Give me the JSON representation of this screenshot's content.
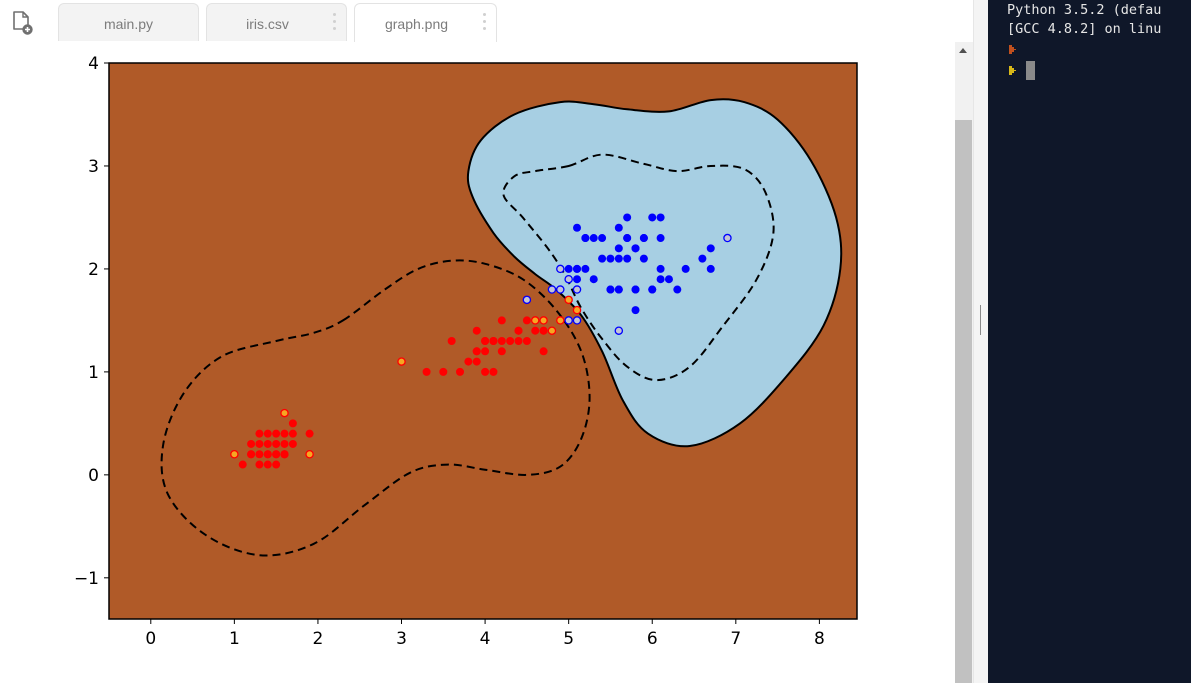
{
  "tabs": [
    {
      "label": "main.py",
      "active": false,
      "menu": false
    },
    {
      "label": "iris.csv",
      "active": false,
      "menu": true
    },
    {
      "label": "graph.png",
      "active": true,
      "menu": true
    }
  ],
  "icons": {
    "new_file": "new-file-icon",
    "tab_menu": "kebab-menu-icon",
    "scroll_up": "triangle-up-icon",
    "prompt": "chevron-right-icon"
  },
  "terminal": {
    "lines": [
      "Python 3.5.2 (defau",
      "[GCC 4.8.2] on linu"
    ],
    "prompt_colors": [
      "#c0501e",
      "#d8b818"
    ]
  },
  "chart_data": {
    "type": "scatter",
    "title": "",
    "xlabel": "",
    "ylabel": "",
    "xlim": [
      -0.5,
      8.45
    ],
    "ylim": [
      -1.4,
      4.0
    ],
    "xticks": [
      "0",
      "1",
      "2",
      "3",
      "4",
      "5",
      "6",
      "7",
      "8"
    ],
    "yticks": [
      "−1",
      "0",
      "1",
      "2",
      "3",
      "4"
    ],
    "grid": false,
    "legend": "none",
    "colors": {
      "background_region": "#b05a28",
      "positive_region": "#a7cfe3",
      "class_a": "#ff0000",
      "class_b": "#0000ff",
      "support_vector_face_a": "#f6a623",
      "support_vector_face_b": "#c4c4d6",
      "decision_boundary": "#000000"
    },
    "decision_boundary": [
      [
        5.7,
        3.55
      ],
      [
        6.2,
        3.53
      ],
      [
        6.7,
        3.64
      ],
      [
        7.1,
        3.62
      ],
      [
        7.5,
        3.45
      ],
      [
        7.9,
        3.05
      ],
      [
        8.2,
        2.5
      ],
      [
        8.25,
        2.0
      ],
      [
        8.05,
        1.45
      ],
      [
        7.6,
        0.95
      ],
      [
        7.05,
        0.5
      ],
      [
        6.45,
        0.28
      ],
      [
        5.95,
        0.4
      ],
      [
        5.65,
        0.72
      ],
      [
        5.4,
        1.2
      ],
      [
        5.15,
        1.55
      ],
      [
        4.85,
        1.8
      ],
      [
        4.6,
        1.95
      ],
      [
        4.35,
        2.12
      ],
      [
        4.1,
        2.35
      ],
      [
        3.85,
        2.7
      ],
      [
        3.8,
        2.95
      ],
      [
        3.95,
        3.25
      ],
      [
        4.35,
        3.5
      ],
      [
        4.9,
        3.62
      ],
      [
        5.3,
        3.6
      ]
    ],
    "margin_upper": [
      [
        5.0,
        3.0
      ],
      [
        5.4,
        3.11
      ],
      [
        5.9,
        3.02
      ],
      [
        6.3,
        2.95
      ],
      [
        6.7,
        3.0
      ],
      [
        7.1,
        2.97
      ],
      [
        7.35,
        2.75
      ],
      [
        7.45,
        2.35
      ],
      [
        7.25,
        1.9
      ],
      [
        6.85,
        1.45
      ],
      [
        6.45,
        1.05
      ],
      [
        6.05,
        0.92
      ],
      [
        5.7,
        1.05
      ],
      [
        5.4,
        1.32
      ],
      [
        5.15,
        1.62
      ],
      [
        4.95,
        1.95
      ],
      [
        4.75,
        2.2
      ],
      [
        4.45,
        2.5
      ],
      [
        4.22,
        2.72
      ],
      [
        4.35,
        2.9
      ],
      [
        4.6,
        2.95
      ]
    ],
    "margin_lower": [
      [
        2.3,
        1.5
      ],
      [
        2.8,
        1.8
      ],
      [
        3.2,
        2.0
      ],
      [
        3.6,
        2.08
      ],
      [
        4.0,
        2.05
      ],
      [
        4.45,
        1.9
      ],
      [
        4.85,
        1.6
      ],
      [
        5.15,
        1.2
      ],
      [
        5.25,
        0.75
      ],
      [
        5.15,
        0.35
      ],
      [
        4.9,
        0.08
      ],
      [
        4.5,
        0.0
      ],
      [
        4.0,
        0.05
      ],
      [
        3.55,
        0.1
      ],
      [
        3.1,
        0.02
      ],
      [
        2.55,
        -0.3
      ],
      [
        1.95,
        -0.67
      ],
      [
        1.3,
        -0.78
      ],
      [
        0.65,
        -0.58
      ],
      [
        0.2,
        -0.18
      ],
      [
        0.15,
        0.3
      ],
      [
        0.4,
        0.8
      ],
      [
        0.85,
        1.15
      ],
      [
        1.5,
        1.3
      ],
      [
        1.95,
        1.38
      ]
    ],
    "series": [
      {
        "values": [
          [
            1.4,
            0.2
          ],
          [
            1.3,
            0.2
          ],
          [
            1.5,
            0.2
          ],
          [
            1.7,
            0.4
          ],
          [
            1.4,
            0.3
          ],
          [
            1.5,
            0.1
          ],
          [
            1.6,
            0.2
          ],
          [
            1.1,
            0.1
          ],
          [
            1.2,
            0.2
          ],
          [
            1.3,
            0.4
          ],
          [
            1.5,
            0.4
          ],
          [
            1.7,
            0.3
          ],
          [
            1.6,
            0.4
          ],
          [
            1.2,
            0.2
          ],
          [
            1.4,
            0.1
          ],
          [
            1.6,
            0.2
          ],
          [
            1.3,
            0.3
          ],
          [
            1.5,
            0.3
          ],
          [
            1.4,
            0.4
          ],
          [
            1.7,
            0.5
          ],
          [
            1.6,
            0.3
          ],
          [
            1.4,
            0.2
          ],
          [
            1.9,
            0.4
          ],
          [
            1.2,
            0.3
          ],
          [
            1.3,
            0.1
          ],
          [
            1.5,
            0.2
          ],
          [
            1.6,
            0.2
          ],
          [
            4.7,
            1.4
          ],
          [
            4.5,
            1.5
          ],
          [
            4.0,
            1.3
          ],
          [
            4.6,
            1.5
          ],
          [
            3.3,
            1.0
          ],
          [
            3.9,
            1.4
          ],
          [
            3.5,
            1.0
          ],
          [
            4.2,
            1.5
          ],
          [
            4.0,
            1.0
          ],
          [
            4.7,
            1.4
          ],
          [
            3.6,
            1.3
          ],
          [
            4.4,
            1.4
          ],
          [
            4.1,
            1.0
          ],
          [
            3.9,
            1.1
          ],
          [
            4.8,
            1.8
          ],
          [
            4.0,
            1.3
          ],
          [
            4.4,
            1.3
          ],
          [
            4.7,
            1.2
          ],
          [
            4.3,
            1.3
          ],
          [
            4.4,
            1.4
          ],
          [
            4.1,
            1.3
          ],
          [
            3.7,
            1.0
          ],
          [
            3.9,
            1.2
          ],
          [
            4.6,
            1.4
          ],
          [
            4.2,
            1.3
          ],
          [
            4.0,
            1.2
          ],
          [
            3.8,
            1.1
          ],
          [
            4.5,
            1.3
          ],
          [
            4.2,
            1.2
          ],
          [
            4.1,
            1.3
          ],
          [
            3.9,
            1.2
          ]
        ]
      },
      {
        "values": [
          [
            6.0,
            2.5
          ],
          [
            5.1,
            1.9
          ],
          [
            5.9,
            2.1
          ],
          [
            5.6,
            1.8
          ],
          [
            5.8,
            2.2
          ],
          [
            6.6,
            2.1
          ],
          [
            5.8,
            1.8
          ],
          [
            6.1,
            2.5
          ],
          [
            5.3,
            1.9
          ],
          [
            5.5,
            2.1
          ],
          [
            5.0,
            2.0
          ],
          [
            5.1,
            2.4
          ],
          [
            5.3,
            2.3
          ],
          [
            5.5,
            1.8
          ],
          [
            6.7,
            2.2
          ],
          [
            5.7,
            2.3
          ],
          [
            6.7,
            2.0
          ],
          [
            5.7,
            2.1
          ],
          [
            6.0,
            1.8
          ],
          [
            5.4,
            2.1
          ],
          [
            5.6,
            2.4
          ],
          [
            6.1,
            2.3
          ],
          [
            5.2,
            2.3
          ],
          [
            5.6,
            1.8
          ],
          [
            6.1,
            1.9
          ],
          [
            6.4,
            2.0
          ],
          [
            5.6,
            2.2
          ],
          [
            5.5,
            1.8
          ],
          [
            5.4,
            2.3
          ],
          [
            5.6,
            2.1
          ],
          [
            5.1,
            2.0
          ],
          [
            5.9,
            2.3
          ],
          [
            5.7,
            2.5
          ],
          [
            5.2,
            2.0
          ],
          [
            6.3,
            1.8
          ],
          [
            5.8,
            1.6
          ],
          [
            6.1,
            2.0
          ],
          [
            5.0,
            1.9
          ],
          [
            5.2,
            2.3
          ],
          [
            5.1,
            2.0
          ],
          [
            5.8,
            1.8
          ],
          [
            6.0,
            1.8
          ],
          [
            5.8,
            2.2
          ],
          [
            5.9,
            2.3
          ],
          [
            5.7,
            2.3
          ],
          [
            6.2,
            1.9
          ]
        ]
      }
    ],
    "support_vectors_a": [
      [
        1.0,
        0.2
      ],
      [
        1.6,
        0.6
      ],
      [
        1.9,
        0.2
      ],
      [
        3.0,
        1.1
      ],
      [
        4.5,
        1.7
      ],
      [
        4.6,
        1.5
      ],
      [
        4.7,
        1.5
      ],
      [
        4.8,
        1.4
      ],
      [
        4.9,
        1.5
      ],
      [
        5.0,
        1.7
      ],
      [
        5.1,
        1.6
      ]
    ],
    "support_vectors_b": [
      [
        4.9,
        1.8
      ],
      [
        4.9,
        2.0
      ],
      [
        5.0,
        1.9
      ],
      [
        5.1,
        1.8
      ],
      [
        5.0,
        1.5
      ],
      [
        5.1,
        1.5
      ],
      [
        5.6,
        1.4
      ],
      [
        6.9,
        2.3
      ],
      [
        4.8,
        1.8
      ],
      [
        4.5,
        1.7
      ]
    ]
  }
}
